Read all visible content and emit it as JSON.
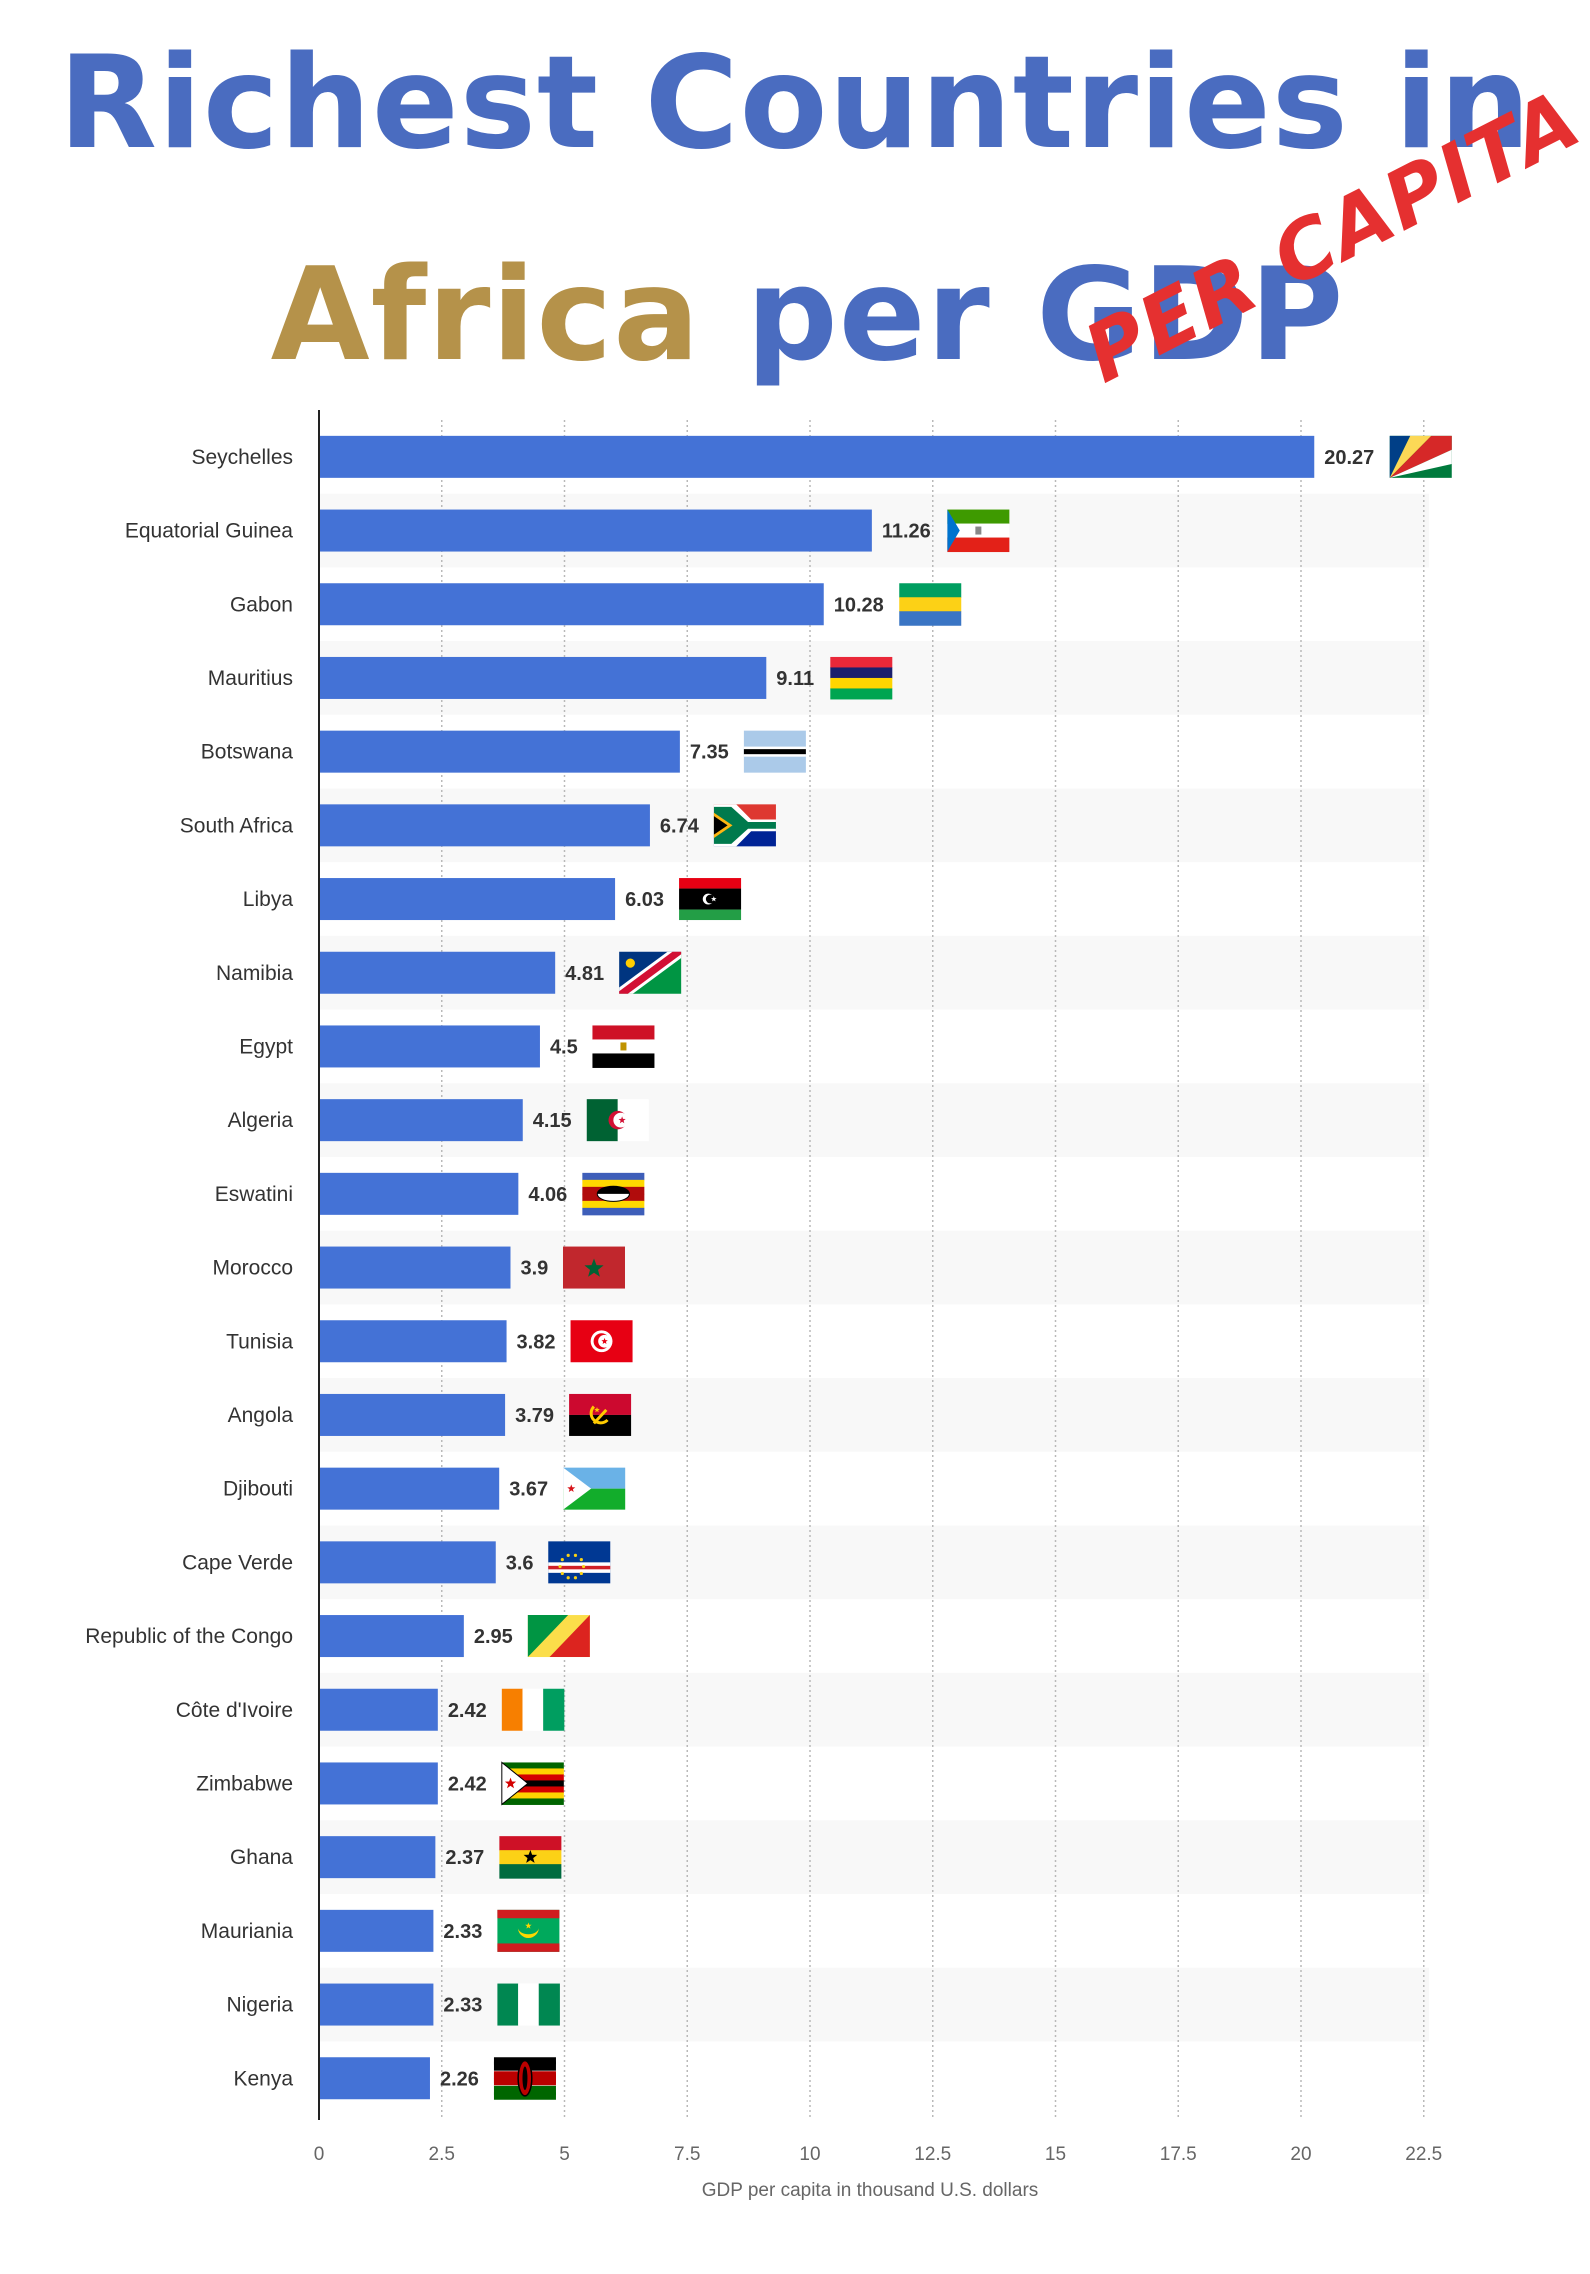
{
  "title": {
    "line1": "Richest Countries in",
    "accent_word": "Africa",
    "rest": "per GDP",
    "stamp": "PER CAPITA"
  },
  "colors": {
    "bar": "#4472d6",
    "title_blue": "#4a6cc0",
    "title_gold": "#b5924a",
    "stamp_red": "#e53030"
  },
  "chart_data": {
    "type": "bar",
    "orientation": "horizontal",
    "xlabel": "GDP per capita in thousand U.S. dollars",
    "ylabel": "",
    "xlim": [
      0,
      23.75
    ],
    "xticks": [
      0,
      2.5,
      5,
      7.5,
      10,
      12.5,
      15,
      17.5,
      20,
      22.5
    ],
    "grid": "vertical dotted",
    "categories": [
      "Seychelles",
      "Equatorial Guinea",
      "Gabon",
      "Mauritius",
      "Botswana",
      "South Africa",
      "Libya",
      "Namibia",
      "Egypt",
      "Algeria",
      "Eswatini",
      "Morocco",
      "Tunisia",
      "Angola",
      "Djibouti",
      "Cape Verde",
      "Republic of the Congo",
      "Côte d'Ivoire",
      "Zimbabwe",
      "Ghana",
      "Mauriania",
      "Nigeria",
      "Kenya"
    ],
    "values": [
      20.27,
      11.26,
      10.28,
      9.11,
      7.35,
      6.74,
      6.03,
      4.81,
      4.5,
      4.15,
      4.06,
      3.9,
      3.82,
      3.79,
      3.67,
      3.6,
      2.95,
      2.42,
      2.42,
      2.37,
      2.33,
      2.33,
      2.26
    ],
    "labels": [
      "20.27",
      "11.26",
      "10.28",
      "9.11",
      "7.35",
      "6.74",
      "6.03",
      "4.81",
      "4.5",
      "4.15",
      "4.06",
      "3.9",
      "3.82",
      "3.79",
      "3.67",
      "3.6",
      "2.95",
      "2.42",
      "2.42",
      "2.37",
      "2.33",
      "2.33",
      "2.26"
    ],
    "flags": [
      "seychelles-flag",
      "equatorial-guinea-flag",
      "gabon-flag",
      "mauritius-flag",
      "botswana-flag",
      "south-africa-flag",
      "libya-flag",
      "namibia-flag",
      "egypt-flag",
      "algeria-flag",
      "eswatini-flag",
      "morocco-flag",
      "tunisia-flag",
      "angola-flag",
      "djibouti-flag",
      "cape-verde-flag",
      "congo-flag",
      "cote-divoire-flag",
      "zimbabwe-flag",
      "ghana-flag",
      "mauritania-flag",
      "nigeria-flag",
      "kenya-flag"
    ]
  }
}
